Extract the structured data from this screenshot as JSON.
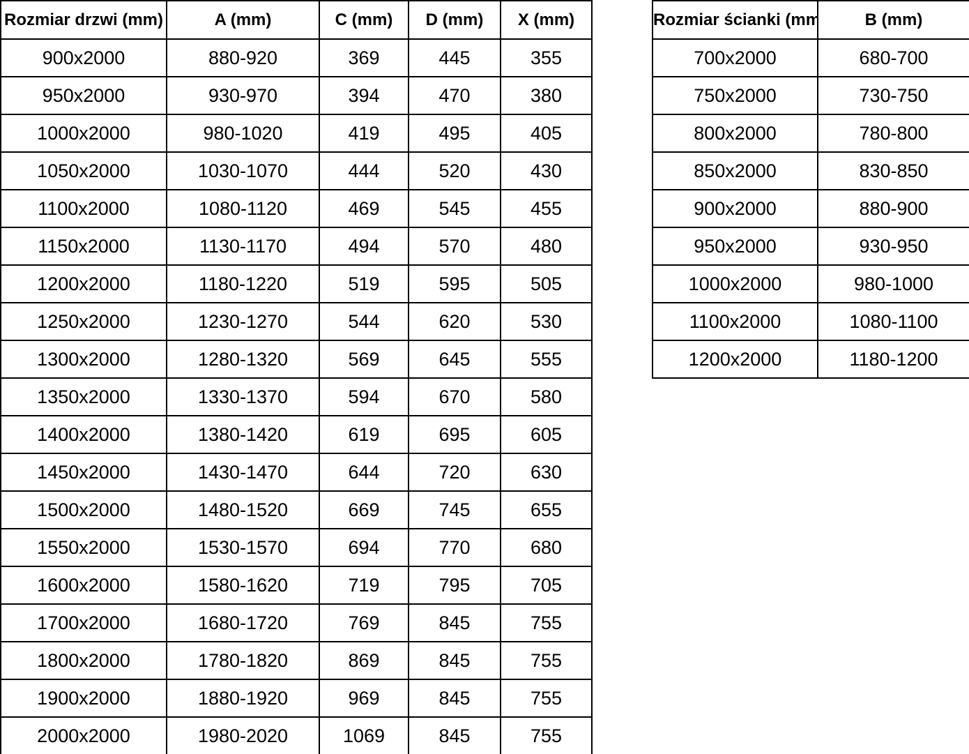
{
  "colors": {
    "background": "#ffffff",
    "border": "#000000",
    "text": "#000000"
  },
  "doors_table": {
    "headers": [
      "Rozmiar drzwi (mm)",
      "A (mm)",
      "C (mm)",
      "D (mm)",
      "X (mm)"
    ],
    "rows": [
      [
        "900x2000",
        "880-920",
        "369",
        "445",
        "355"
      ],
      [
        "950x2000",
        "930-970",
        "394",
        "470",
        "380"
      ],
      [
        "1000x2000",
        "980-1020",
        "419",
        "495",
        "405"
      ],
      [
        "1050x2000",
        "1030-1070",
        "444",
        "520",
        "430"
      ],
      [
        "1100x2000",
        "1080-1120",
        "469",
        "545",
        "455"
      ],
      [
        "1150x2000",
        "1130-1170",
        "494",
        "570",
        "480"
      ],
      [
        "1200x2000",
        "1180-1220",
        "519",
        "595",
        "505"
      ],
      [
        "1250x2000",
        "1230-1270",
        "544",
        "620",
        "530"
      ],
      [
        "1300x2000",
        "1280-1320",
        "569",
        "645",
        "555"
      ],
      [
        "1350x2000",
        "1330-1370",
        "594",
        "670",
        "580"
      ],
      [
        "1400x2000",
        "1380-1420",
        "619",
        "695",
        "605"
      ],
      [
        "1450x2000",
        "1430-1470",
        "644",
        "720",
        "630"
      ],
      [
        "1500x2000",
        "1480-1520",
        "669",
        "745",
        "655"
      ],
      [
        "1550x2000",
        "1530-1570",
        "694",
        "770",
        "680"
      ],
      [
        "1600x2000",
        "1580-1620",
        "719",
        "795",
        "705"
      ],
      [
        "1700x2000",
        "1680-1720",
        "769",
        "845",
        "755"
      ],
      [
        "1800x2000",
        "1780-1820",
        "869",
        "845",
        "755"
      ],
      [
        "1900x2000",
        "1880-1920",
        "969",
        "845",
        "755"
      ],
      [
        "2000x2000",
        "1980-2020",
        "1069",
        "845",
        "755"
      ]
    ]
  },
  "walls_table": {
    "headers": [
      "Rozmiar ścianki (mm)",
      "B (mm)"
    ],
    "rows": [
      [
        "700x2000",
        "680-700"
      ],
      [
        "750x2000",
        "730-750"
      ],
      [
        "800x2000",
        "780-800"
      ],
      [
        "850x2000",
        "830-850"
      ],
      [
        "900x2000",
        "880-900"
      ],
      [
        "950x2000",
        "930-950"
      ],
      [
        "1000x2000",
        "980-1000"
      ],
      [
        "1100x2000",
        "1080-1100"
      ],
      [
        "1200x2000",
        "1180-1200"
      ]
    ]
  }
}
